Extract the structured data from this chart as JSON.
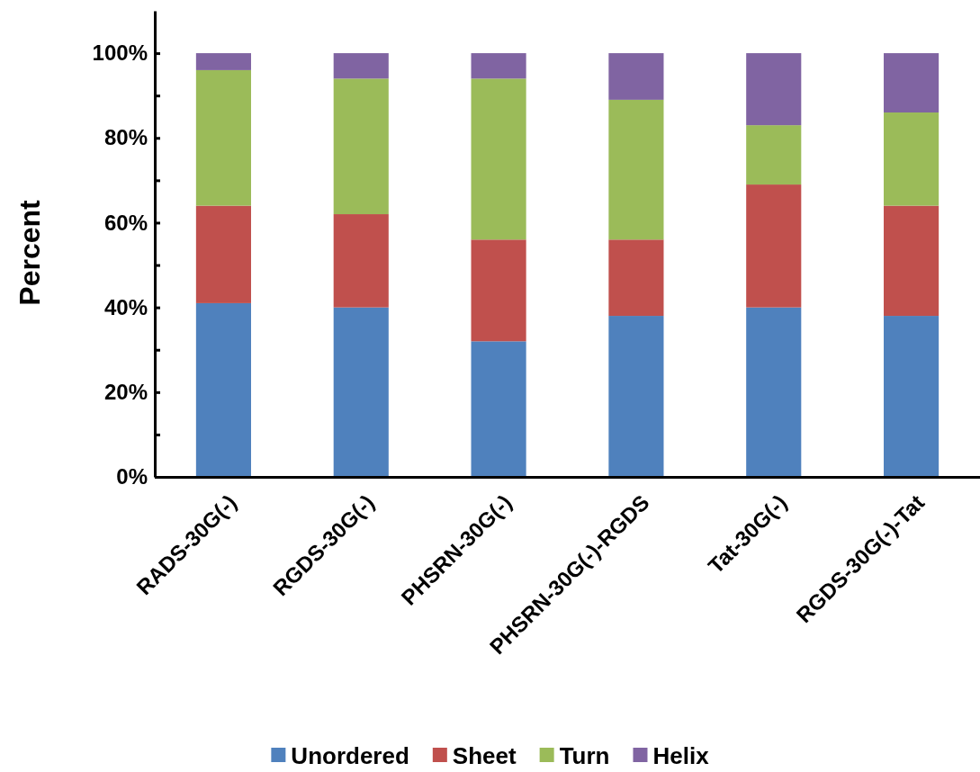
{
  "chart_data": {
    "type": "bar",
    "stacked": true,
    "ylabel": "Percent",
    "categories": [
      "RADS-30G(-)",
      "RGDS-30G(-)",
      "PHSRN-30G(-)",
      "PHSRN-30G(-)-RGDS",
      "Tat-30G(-)",
      "RGDS-30G(-)-Tat"
    ],
    "series": [
      {
        "name": "Unordered",
        "color": "#4f81bd",
        "values": [
          41,
          40,
          32,
          38,
          40,
          38
        ]
      },
      {
        "name": "Sheet",
        "color": "#c0504d",
        "values": [
          23,
          22,
          24,
          18,
          29,
          26
        ]
      },
      {
        "name": "Turn",
        "color": "#9bbb59",
        "values": [
          32,
          32,
          38,
          33,
          14,
          22
        ]
      },
      {
        "name": "Helix",
        "color": "#8064a2",
        "values": [
          4,
          6,
          6,
          11,
          17,
          14
        ]
      }
    ],
    "ylim": [
      0,
      110
    ],
    "yticks": [
      {
        "value": 0,
        "label": "0%"
      },
      {
        "value": 10,
        "label": null
      },
      {
        "value": 20,
        "label": "20%"
      },
      {
        "value": 30,
        "label": null
      },
      {
        "value": 40,
        "label": "40%"
      },
      {
        "value": 50,
        "label": null
      },
      {
        "value": 60,
        "label": "60%"
      },
      {
        "value": 70,
        "label": null
      },
      {
        "value": 80,
        "label": "80%"
      },
      {
        "value": 90,
        "label": null
      },
      {
        "value": 100,
        "label": "100%"
      }
    ],
    "grid": false,
    "legend": "bottom"
  }
}
